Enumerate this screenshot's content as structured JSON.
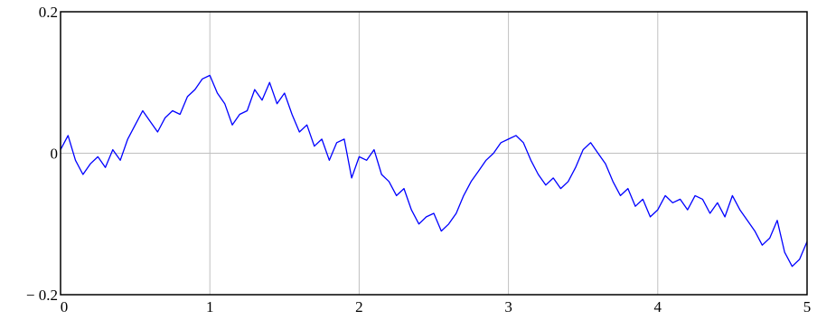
{
  "chart_data": {
    "type": "line",
    "title": "",
    "xlabel": "",
    "ylabel": "",
    "xlim": [
      0,
      5
    ],
    "ylim": [
      -0.2,
      0.2
    ],
    "grid": true,
    "x_ticks": [
      0,
      1,
      2,
      3,
      4,
      5
    ],
    "x_tick_labels": [
      "0",
      "1",
      "2",
      "3",
      "4",
      "5"
    ],
    "y_ticks": [
      0.2,
      0,
      -0.2
    ],
    "y_tick_labels": [
      "0.2",
      "0",
      "− 0.2"
    ],
    "colors": {
      "line": "#0000ff",
      "grid": "#c0c0c0",
      "frame": "#000000"
    },
    "series": [
      {
        "x": [
          0.0,
          0.05,
          0.1,
          0.15,
          0.2,
          0.25,
          0.3,
          0.35,
          0.4,
          0.45,
          0.5,
          0.55,
          0.6,
          0.65,
          0.7,
          0.75,
          0.8,
          0.85,
          0.9,
          0.95,
          1.0,
          1.05,
          1.1,
          1.15,
          1.2,
          1.25,
          1.3,
          1.35,
          1.4,
          1.45,
          1.5,
          1.55,
          1.6,
          1.65,
          1.7,
          1.75,
          1.8,
          1.85,
          1.9,
          1.95,
          2.0,
          2.05,
          2.1,
          2.15,
          2.2,
          2.25,
          2.3,
          2.35,
          2.4,
          2.45,
          2.5,
          2.55,
          2.6,
          2.65,
          2.7,
          2.75,
          2.8,
          2.85,
          2.9,
          2.95,
          3.0,
          3.05,
          3.1,
          3.15,
          3.2,
          3.25,
          3.3,
          3.35,
          3.4,
          3.45,
          3.5,
          3.55,
          3.6,
          3.65,
          3.7,
          3.75,
          3.8,
          3.85,
          3.9,
          3.95,
          4.0,
          4.05,
          4.1,
          4.15,
          4.2,
          4.25,
          4.3,
          4.35,
          4.4,
          4.45,
          4.5,
          4.55,
          4.6,
          4.65,
          4.7,
          4.75,
          4.8,
          4.85,
          4.9,
          4.95,
          5.0
        ],
        "y": [
          0.005,
          0.025,
          -0.01,
          -0.03,
          -0.015,
          -0.005,
          -0.02,
          0.005,
          -0.01,
          0.02,
          0.04,
          0.06,
          0.045,
          0.03,
          0.05,
          0.06,
          0.055,
          0.08,
          0.09,
          0.105,
          0.11,
          0.085,
          0.07,
          0.04,
          0.055,
          0.06,
          0.09,
          0.075,
          0.1,
          0.07,
          0.085,
          0.055,
          0.03,
          0.04,
          0.01,
          0.02,
          -0.01,
          0.015,
          0.02,
          -0.035,
          -0.005,
          -0.01,
          0.005,
          -0.03,
          -0.04,
          -0.06,
          -0.05,
          -0.08,
          -0.1,
          -0.09,
          -0.085,
          -0.11,
          -0.1,
          -0.085,
          -0.06,
          -0.04,
          -0.025,
          -0.01,
          0.0,
          0.015,
          0.02,
          0.025,
          0.015,
          -0.01,
          -0.03,
          -0.045,
          -0.035,
          -0.05,
          -0.04,
          -0.02,
          0.005,
          0.015,
          0.0,
          -0.015,
          -0.04,
          -0.06,
          -0.05,
          -0.075,
          -0.065,
          -0.09,
          -0.08,
          -0.06,
          -0.07,
          -0.065,
          -0.08,
          -0.06,
          -0.065,
          -0.085,
          -0.07,
          -0.09,
          -0.06,
          -0.08,
          -0.095,
          -0.11,
          -0.13,
          -0.12,
          -0.095,
          -0.14,
          -0.16,
          -0.15,
          -0.125
        ]
      }
    ]
  }
}
